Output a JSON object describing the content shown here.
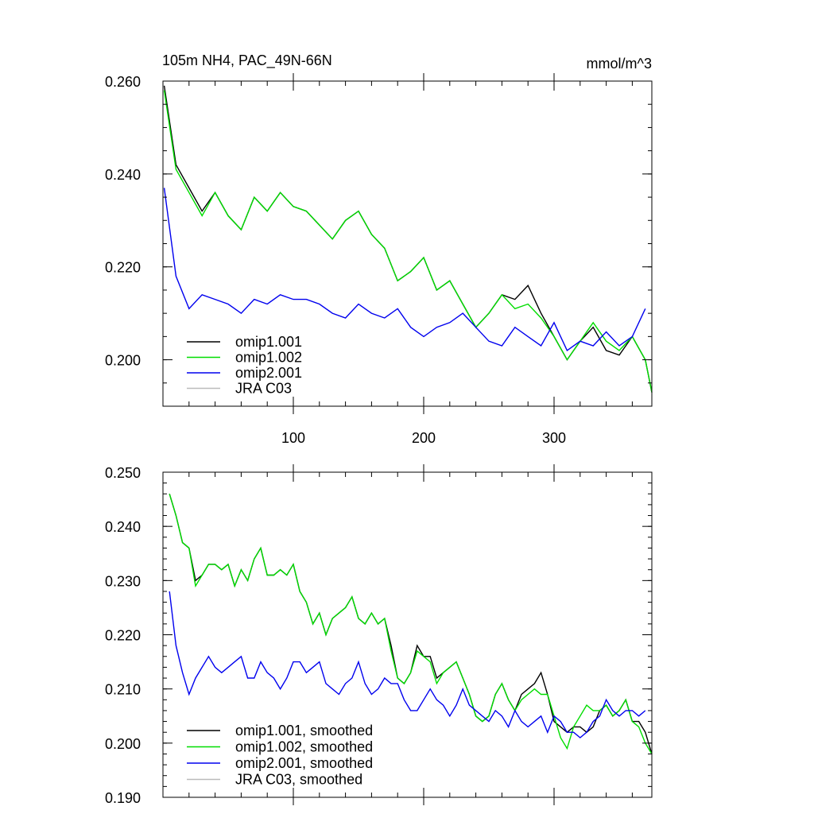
{
  "chart_data": [
    {
      "type": "line",
      "title": "105m NH4, PAC_49N-66N",
      "units": "mmol/m^3",
      "xlim": [
        0,
        375
      ],
      "ylim": [
        0.19,
        0.26
      ],
      "xticks": [
        100,
        200,
        300
      ],
      "xtick_labels": [
        "100",
        "200",
        "300"
      ],
      "yticks": [
        0.2,
        0.22,
        0.24,
        0.26
      ],
      "ytick_labels": [
        "0.200",
        "0.220",
        "0.240",
        "0.260"
      ],
      "legend_position": "bottom-left",
      "series": [
        {
          "name": "omip1.001",
          "color": "#000000",
          "x": [
            1,
            10,
            20,
            30,
            40,
            50,
            60,
            70,
            80,
            90,
            100,
            110,
            120,
            130,
            140,
            150,
            160,
            170,
            180,
            190,
            200,
            210,
            220,
            230,
            240,
            250,
            260,
            270,
            280,
            290,
            300,
            310,
            320,
            330,
            340,
            350,
            360,
            370,
            375
          ],
          "y": [
            0.259,
            0.242,
            0.237,
            0.232,
            0.236,
            0.231,
            0.228,
            0.235,
            0.232,
            0.236,
            0.233,
            0.232,
            0.229,
            0.226,
            0.23,
            0.232,
            0.227,
            0.224,
            0.217,
            0.219,
            0.222,
            0.215,
            0.217,
            0.212,
            0.207,
            0.21,
            0.214,
            0.213,
            0.216,
            0.21,
            0.205,
            0.2,
            0.204,
            0.207,
            0.202,
            0.201,
            0.205,
            0.2,
            0.193
          ]
        },
        {
          "name": "omip1.002",
          "color": "#00dd00",
          "x": [
            1,
            10,
            20,
            30,
            40,
            50,
            60,
            70,
            80,
            90,
            100,
            110,
            120,
            130,
            140,
            150,
            160,
            170,
            180,
            190,
            200,
            210,
            220,
            230,
            240,
            250,
            260,
            270,
            280,
            290,
            300,
            310,
            320,
            330,
            340,
            350,
            360,
            370,
            375
          ],
          "y": [
            0.258,
            0.241,
            0.236,
            0.231,
            0.236,
            0.231,
            0.228,
            0.235,
            0.232,
            0.236,
            0.233,
            0.232,
            0.229,
            0.226,
            0.23,
            0.232,
            0.227,
            0.224,
            0.217,
            0.219,
            0.222,
            0.215,
            0.217,
            0.212,
            0.207,
            0.21,
            0.214,
            0.211,
            0.212,
            0.209,
            0.205,
            0.2,
            0.204,
            0.208,
            0.204,
            0.202,
            0.205,
            0.2,
            0.193
          ]
        },
        {
          "name": "omip2.001",
          "color": "#0000ee",
          "x": [
            1,
            10,
            20,
            30,
            40,
            50,
            60,
            70,
            80,
            90,
            100,
            110,
            120,
            130,
            140,
            150,
            160,
            170,
            180,
            190,
            200,
            210,
            220,
            230,
            240,
            250,
            260,
            270,
            280,
            290,
            300,
            310,
            320,
            330,
            340,
            350,
            360,
            370
          ],
          "y": [
            0.237,
            0.218,
            0.211,
            0.214,
            0.213,
            0.212,
            0.21,
            0.213,
            0.212,
            0.214,
            0.213,
            0.213,
            0.212,
            0.21,
            0.209,
            0.212,
            0.21,
            0.209,
            0.211,
            0.207,
            0.205,
            0.207,
            0.208,
            0.21,
            0.207,
            0.204,
            0.203,
            0.207,
            0.205,
            0.203,
            0.208,
            0.202,
            0.204,
            0.203,
            0.206,
            0.203,
            0.205,
            0.211
          ]
        },
        {
          "name": "JRA C03",
          "color": "#bbbbbb",
          "x": [],
          "y": []
        }
      ]
    },
    {
      "type": "line",
      "xlim": [
        0,
        375
      ],
      "ylim": [
        0.19,
        0.25
      ],
      "xticks": [
        100,
        200,
        300
      ],
      "yticks": [
        0.19,
        0.2,
        0.21,
        0.22,
        0.23,
        0.24,
        0.25
      ],
      "ytick_labels": [
        "0.190",
        "0.200",
        "0.210",
        "0.220",
        "0.230",
        "0.240",
        "0.250"
      ],
      "legend_position": "bottom-left",
      "series": [
        {
          "name": "omip1.001, smoothed",
          "color": "#000000",
          "x": [
            5,
            10,
            15,
            20,
            25,
            30,
            35,
            40,
            45,
            50,
            55,
            60,
            65,
            70,
            75,
            80,
            85,
            90,
            95,
            100,
            105,
            110,
            115,
            120,
            125,
            130,
            135,
            140,
            145,
            150,
            155,
            160,
            165,
            170,
            175,
            180,
            185,
            190,
            195,
            200,
            205,
            210,
            215,
            220,
            225,
            230,
            235,
            240,
            245,
            250,
            255,
            260,
            265,
            270,
            275,
            280,
            285,
            290,
            295,
            300,
            305,
            310,
            315,
            320,
            325,
            330,
            335,
            340,
            345,
            350,
            355,
            360,
            365,
            370,
            375
          ],
          "y": [
            0.246,
            0.242,
            0.237,
            0.236,
            0.23,
            0.231,
            0.233,
            0.233,
            0.232,
            0.233,
            0.229,
            0.232,
            0.23,
            0.234,
            0.236,
            0.231,
            0.231,
            0.232,
            0.231,
            0.233,
            0.228,
            0.226,
            0.222,
            0.224,
            0.22,
            0.223,
            0.224,
            0.225,
            0.227,
            0.223,
            0.222,
            0.224,
            0.222,
            0.223,
            0.218,
            0.212,
            0.211,
            0.213,
            0.218,
            0.216,
            0.216,
            0.212,
            0.213,
            0.214,
            0.215,
            0.212,
            0.209,
            0.205,
            0.204,
            0.205,
            0.209,
            0.211,
            0.208,
            0.206,
            0.209,
            0.21,
            0.211,
            0.213,
            0.209,
            0.204,
            0.203,
            0.202,
            0.203,
            0.203,
            0.202,
            0.203,
            0.206,
            0.207,
            0.205,
            0.206,
            0.208,
            0.204,
            0.204,
            0.202,
            0.198
          ]
        },
        {
          "name": "omip1.002, smoothed",
          "color": "#00dd00",
          "x": [
            5,
            10,
            15,
            20,
            25,
            30,
            35,
            40,
            45,
            50,
            55,
            60,
            65,
            70,
            75,
            80,
            85,
            90,
            95,
            100,
            105,
            110,
            115,
            120,
            125,
            130,
            135,
            140,
            145,
            150,
            155,
            160,
            165,
            170,
            175,
            180,
            185,
            190,
            195,
            200,
            205,
            210,
            215,
            220,
            225,
            230,
            235,
            240,
            245,
            250,
            255,
            260,
            265,
            270,
            275,
            280,
            285,
            290,
            295,
            300,
            305,
            310,
            315,
            320,
            325,
            330,
            335,
            340,
            345,
            350,
            355,
            360,
            365,
            370,
            375
          ],
          "y": [
            0.246,
            0.242,
            0.237,
            0.236,
            0.229,
            0.231,
            0.233,
            0.233,
            0.232,
            0.233,
            0.229,
            0.232,
            0.23,
            0.234,
            0.236,
            0.231,
            0.231,
            0.232,
            0.231,
            0.233,
            0.228,
            0.226,
            0.222,
            0.224,
            0.22,
            0.223,
            0.224,
            0.225,
            0.227,
            0.223,
            0.222,
            0.224,
            0.222,
            0.223,
            0.217,
            0.212,
            0.211,
            0.213,
            0.217,
            0.216,
            0.215,
            0.211,
            0.213,
            0.214,
            0.215,
            0.212,
            0.209,
            0.205,
            0.204,
            0.205,
            0.209,
            0.211,
            0.208,
            0.206,
            0.208,
            0.209,
            0.21,
            0.209,
            0.209,
            0.205,
            0.201,
            0.199,
            0.203,
            0.205,
            0.207,
            0.206,
            0.206,
            0.207,
            0.205,
            0.206,
            0.208,
            0.204,
            0.203,
            0.2,
            0.198
          ]
        },
        {
          "name": "omip2.001, smoothed",
          "color": "#0000ee",
          "x": [
            5,
            10,
            15,
            20,
            25,
            30,
            35,
            40,
            45,
            50,
            55,
            60,
            65,
            70,
            75,
            80,
            85,
            90,
            95,
            100,
            105,
            110,
            115,
            120,
            125,
            130,
            135,
            140,
            145,
            150,
            155,
            160,
            165,
            170,
            175,
            180,
            185,
            190,
            195,
            200,
            205,
            210,
            215,
            220,
            225,
            230,
            235,
            240,
            245,
            250,
            255,
            260,
            265,
            270,
            275,
            280,
            285,
            290,
            295,
            300,
            305,
            310,
            315,
            320,
            325,
            330,
            335,
            340,
            345,
            350,
            355,
            360,
            365,
            370
          ],
          "y": [
            0.228,
            0.218,
            0.213,
            0.209,
            0.212,
            0.214,
            0.216,
            0.214,
            0.213,
            0.214,
            0.215,
            0.216,
            0.212,
            0.212,
            0.215,
            0.213,
            0.212,
            0.21,
            0.212,
            0.215,
            0.215,
            0.213,
            0.214,
            0.215,
            0.211,
            0.21,
            0.209,
            0.211,
            0.212,
            0.215,
            0.211,
            0.209,
            0.21,
            0.212,
            0.211,
            0.211,
            0.208,
            0.206,
            0.206,
            0.208,
            0.21,
            0.208,
            0.207,
            0.205,
            0.207,
            0.21,
            0.207,
            0.206,
            0.205,
            0.204,
            0.206,
            0.205,
            0.203,
            0.206,
            0.204,
            0.203,
            0.204,
            0.205,
            0.202,
            0.205,
            0.204,
            0.202,
            0.202,
            0.201,
            0.202,
            0.204,
            0.205,
            0.208,
            0.206,
            0.205,
            0.206,
            0.206,
            0.205,
            0.206
          ]
        },
        {
          "name": "JRA C03, smoothed",
          "color": "#bbbbbb",
          "x": [],
          "y": []
        }
      ]
    }
  ]
}
